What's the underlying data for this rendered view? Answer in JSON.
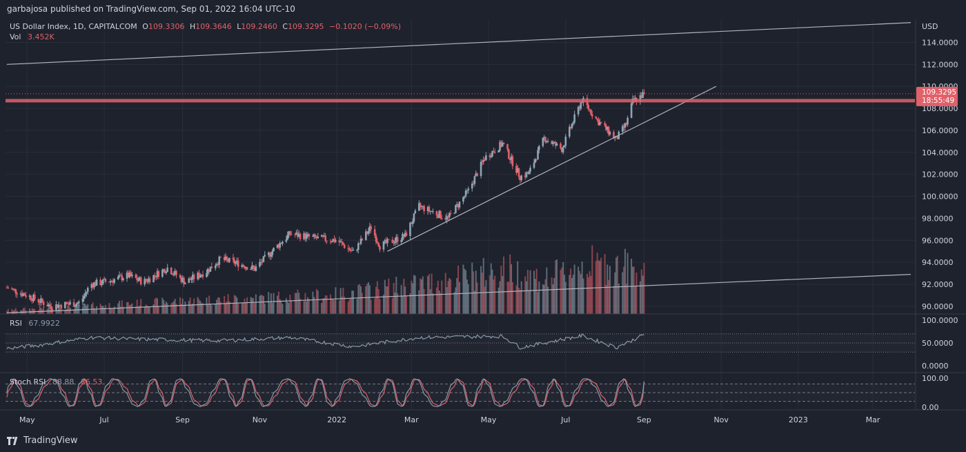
{
  "header": {
    "published": "garbajosa published on TradingView.com, Sep 01, 2022 16:04 UTC-10"
  },
  "footer": {
    "brand": "TradingView",
    "logo_icon": "tradingview-logo-icon"
  },
  "colors": {
    "background": "#1e222d",
    "grid": "#2a2e39",
    "up": "#8fa5b3",
    "down": "#e0616a",
    "line": "#b2b5be",
    "rsi": "#8a9aa8",
    "stoch_k": "#8a9aa8",
    "stoch_d": "#e0616a",
    "resistance": "#e0616a"
  },
  "legend": {
    "main": {
      "symbol": "US Dollar Index, 1D, CAPITALCOM",
      "o_label": "O",
      "o": "109.3306",
      "h_label": "H",
      "h": "109.3646",
      "l_label": "L",
      "l": "109.2460",
      "c_label": "C",
      "c": "109.3295",
      "change": "−0.1020 (−0.09%)"
    },
    "vol": {
      "label": "Vol",
      "value": "3.452K"
    },
    "rsi": {
      "label": "RSI",
      "value": "67.9922"
    },
    "stoch": {
      "label": "Stoch RSI",
      "k": "88.88",
      "d": "86.53"
    }
  },
  "price_badge": {
    "price": "109.3295",
    "countdown": "18:55:49"
  },
  "chart_data": {
    "type": "candlestick",
    "currency_label": "USD",
    "price_axis": {
      "ticks": [
        "114.0000",
        "112.0000",
        "110.0000",
        "108.0000",
        "106.0000",
        "104.0000",
        "102.0000",
        "100.0000",
        "98.0000",
        "96.0000",
        "94.0000",
        "92.0000",
        "90.0000"
      ],
      "ylim": [
        89.3,
        116.1
      ]
    },
    "time_axis": {
      "labels": [
        "May",
        "Jul",
        "Sep",
        "Nov",
        "2022",
        "Mar",
        "May",
        "Jul",
        "Sep",
        "Nov",
        "2023",
        "Mar"
      ]
    },
    "price_path": [
      {
        "date": "2021-04-15",
        "price": 91.7
      },
      {
        "date": "2021-05-01",
        "price": 91.0
      },
      {
        "date": "2021-05-20",
        "price": 90.0
      },
      {
        "date": "2021-06-01",
        "price": 90.2
      },
      {
        "date": "2021-06-12",
        "price": 90.3
      },
      {
        "date": "2021-06-20",
        "price": 92.0
      },
      {
        "date": "2021-07-05",
        "price": 92.3
      },
      {
        "date": "2021-07-20",
        "price": 92.8
      },
      {
        "date": "2021-08-01",
        "price": 92.2
      },
      {
        "date": "2021-08-20",
        "price": 93.5
      },
      {
        "date": "2021-09-03",
        "price": 92.2
      },
      {
        "date": "2021-09-20",
        "price": 93.2
      },
      {
        "date": "2021-10-01",
        "price": 94.3
      },
      {
        "date": "2021-10-15",
        "price": 93.9
      },
      {
        "date": "2021-10-28",
        "price": 93.4
      },
      {
        "date": "2021-11-15",
        "price": 95.5
      },
      {
        "date": "2021-11-25",
        "price": 96.6
      },
      {
        "date": "2021-12-15",
        "price": 96.2
      },
      {
        "date": "2022-01-01",
        "price": 96.0
      },
      {
        "date": "2022-01-14",
        "price": 94.9
      },
      {
        "date": "2022-01-28",
        "price": 97.2
      },
      {
        "date": "2022-02-04",
        "price": 95.5
      },
      {
        "date": "2022-02-24",
        "price": 96.4
      },
      {
        "date": "2022-03-07",
        "price": 99.1
      },
      {
        "date": "2022-03-30",
        "price": 98.0
      },
      {
        "date": "2022-04-15",
        "price": 100.5
      },
      {
        "date": "2022-04-28",
        "price": 103.5
      },
      {
        "date": "2022-05-12",
        "price": 104.8
      },
      {
        "date": "2022-05-26",
        "price": 101.8
      },
      {
        "date": "2022-06-02",
        "price": 102.1
      },
      {
        "date": "2022-06-14",
        "price": 105.3
      },
      {
        "date": "2022-06-28",
        "price": 104.3
      },
      {
        "date": "2022-07-14",
        "price": 108.8
      },
      {
        "date": "2022-07-26",
        "price": 106.9
      },
      {
        "date": "2022-08-10",
        "price": 105.2
      },
      {
        "date": "2022-08-18",
        "price": 106.6
      },
      {
        "date": "2022-08-23",
        "price": 108.6
      },
      {
        "date": "2022-09-01",
        "price": 109.33
      }
    ],
    "volume_path": [
      {
        "date": "2021-04-15",
        "volume": 0.05
      },
      {
        "date": "2021-09-01",
        "volume": 0.17
      },
      {
        "date": "2021-12-31",
        "volume": 0.25
      },
      {
        "date": "2022-02-15",
        "volume": 0.35
      },
      {
        "date": "2022-04-01",
        "volume": 0.45
      },
      {
        "date": "2022-05-15",
        "volume": 0.58
      },
      {
        "date": "2022-06-15",
        "volume": 0.45
      },
      {
        "date": "2022-07-15",
        "volume": 0.65
      },
      {
        "date": "2022-09-01",
        "volume": 0.6
      }
    ],
    "rsi_axis": {
      "ticks": [
        "100.0000",
        "50.0000",
        "0.0000"
      ],
      "ylim": [
        0,
        100
      ],
      "bands": [
        30,
        50,
        70
      ]
    },
    "stoch_axis": {
      "ticks": [
        "100.00",
        "0.00"
      ],
      "ylim": [
        0,
        100
      ],
      "bands": [
        20,
        50,
        80
      ]
    },
    "rsi_path": [
      {
        "date": "2021-04-15",
        "value": 38
      },
      {
        "date": "2021-05-10",
        "value": 45
      },
      {
        "date": "2021-06-20",
        "value": 62
      },
      {
        "date": "2021-08-01",
        "value": 58
      },
      {
        "date": "2021-10-01",
        "value": 55
      },
      {
        "date": "2021-11-25",
        "value": 62
      },
      {
        "date": "2022-01-14",
        "value": 42
      },
      {
        "date": "2022-03-07",
        "value": 62
      },
      {
        "date": "2022-05-12",
        "value": 65
      },
      {
        "date": "2022-05-26",
        "value": 40
      },
      {
        "date": "2022-07-14",
        "value": 66
      },
      {
        "date": "2022-08-10",
        "value": 40
      },
      {
        "date": "2022-09-01",
        "value": 67.99
      }
    ],
    "trendlines": [
      {
        "name": "upper-channel",
        "from": {
          "date": "2021-04-15",
          "price": 112.0
        },
        "to": {
          "date": "2023-03-31",
          "price": 115.8
        }
      },
      {
        "name": "support-trendline",
        "from": {
          "date": "2022-02-10",
          "price": 95.0
        },
        "to": {
          "date": "2022-10-28",
          "price": 110.0
        }
      },
      {
        "name": "lower-channel",
        "from": {
          "date": "2021-04-15",
          "price": 89.4
        },
        "to": {
          "date": "2023-03-31",
          "price": 92.9
        }
      }
    ],
    "resistance_level": 108.7,
    "last_price": 109.3295
  }
}
